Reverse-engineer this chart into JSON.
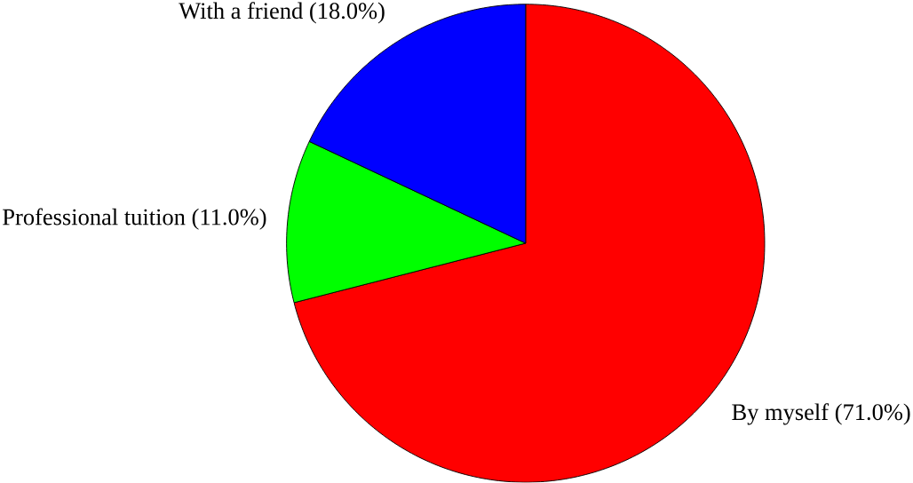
{
  "chart_data": {
    "type": "pie",
    "categories": [
      "By myself",
      "Professional tuition",
      "With a friend"
    ],
    "values": [
      71.0,
      11.0,
      18.0
    ],
    "value_labels": [
      "(71.0%)",
      "(11.0%)",
      "(18.0%)"
    ],
    "colors": [
      "#ff0000",
      "#00ff00",
      "#0000ff"
    ]
  }
}
